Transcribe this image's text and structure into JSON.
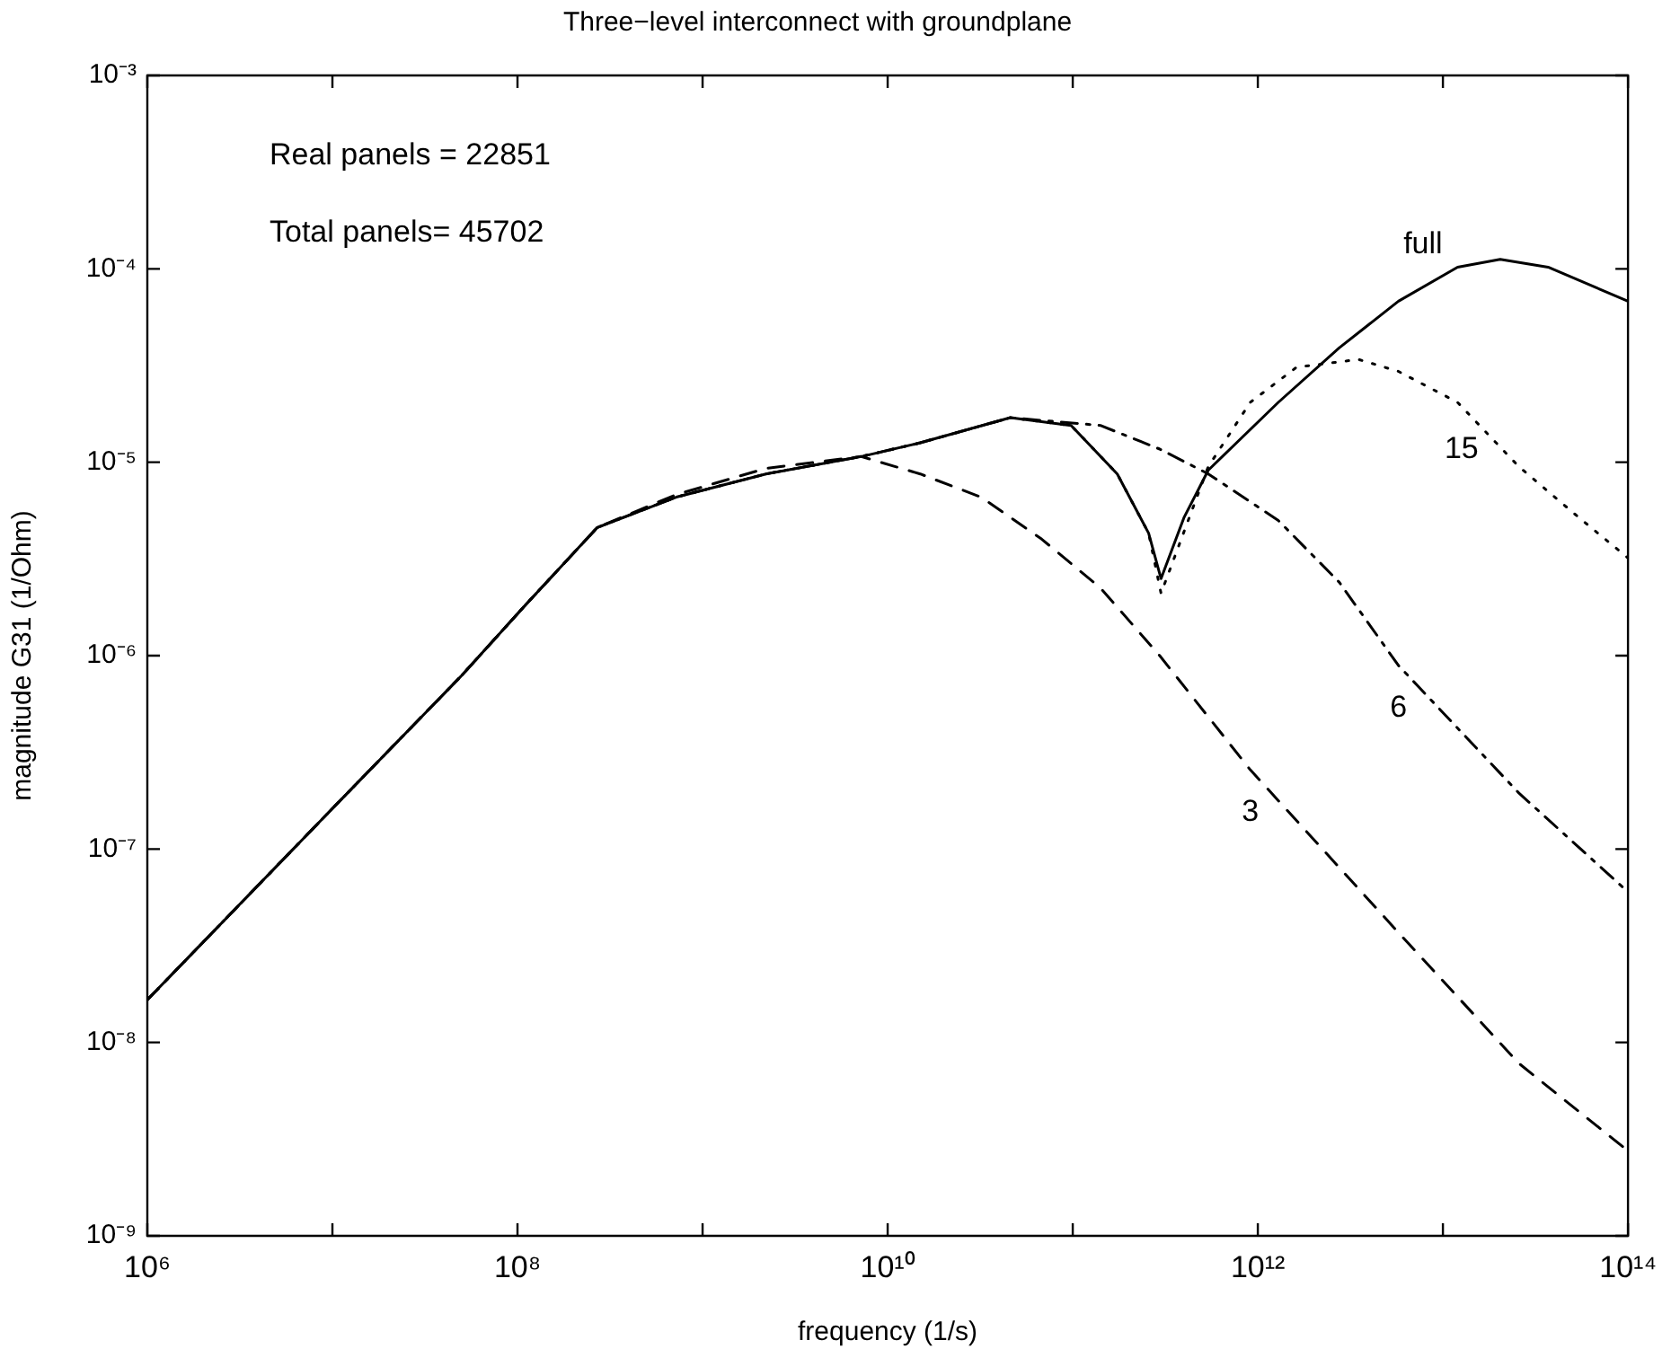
{
  "chart_data": {
    "type": "line",
    "title": "Three−level interconnect with groundplane",
    "xlabel": "frequency (1/s)",
    "ylabel": "magnitude G31 (1/Ohm)",
    "log": "xy",
    "grid": false,
    "legend": false,
    "marker": "none",
    "xlim": [
      1000000.0,
      100000000000000.0
    ],
    "ylim": [
      1e-09,
      0.001
    ],
    "xticks": [
      {
        "value": 1000000.0,
        "label": "10⁶"
      },
      {
        "value": 10000000.0,
        "label": null
      },
      {
        "value": 100000000.0,
        "label": "10⁸"
      },
      {
        "value": 1000000000.0,
        "label": null
      },
      {
        "value": 10000000000.0,
        "label": "10¹⁰"
      },
      {
        "value": 100000000000.0,
        "label": null
      },
      {
        "value": 1000000000000.0,
        "label": "10¹²"
      },
      {
        "value": 10000000000000.0,
        "label": null
      },
      {
        "value": 100000000000000.0,
        "label": "10¹⁴"
      }
    ],
    "yticks": [
      {
        "value": 1e-09,
        "label": "10⁻⁹"
      },
      {
        "value": 1e-08,
        "label": "10⁻⁸"
      },
      {
        "value": 1e-07,
        "label": "10⁻⁷"
      },
      {
        "value": 1e-06,
        "label": "10⁻⁶"
      },
      {
        "value": 1e-05,
        "label": "10⁻⁵"
      },
      {
        "value": 0.0001,
        "label": "10⁻⁴"
      },
      {
        "value": 0.001,
        "label": "10⁻³"
      }
    ],
    "series": [
      {
        "color": "#000000",
        "line_style": "solid",
        "x": [
          1000000.0,
          10000000.0,
          50000000.0,
          110000000.0,
          270000000.0,
          720000000.0,
          2200000000.0,
          7200000000.0,
          15000000000.0,
          46000000000.0,
          98000000000.0,
          174000000000.0,
          257000000000.0,
          300000000000.0,
          400000000000.0,
          540000000000.0,
          1290000000000.0,
          2750000000000.0,
          5750000000000.0,
          12000000000000.0,
          20400000000000.0,
          37000000000000.0,
          100000000000000.0
        ],
        "values": [
          1.66e-08,
          1.62e-07,
          7.9e-07,
          1.82e-06,
          4.6e-06,
          6.6e-06,
          8.7e-06,
          1.07e-05,
          1.26e-05,
          1.7e-05,
          1.55e-05,
          8.7e-06,
          4.3e-06,
          2.5e-06,
          5.2e-06,
          9.1e-06,
          2.04e-05,
          3.9e-05,
          6.8e-05,
          0.000102,
          0.000112,
          0.000102,
          6.8e-05
        ]
      },
      {
        "color": "#000000",
        "line_style": "dashed",
        "x": [
          1000000.0,
          10000000.0,
          50000000.0,
          110000000.0,
          270000000.0,
          720000000.0,
          2200000000.0,
          7200000000.0,
          15000000000.0,
          32000000000.0,
          68000000000.0,
          141000000000.0,
          295000000000.0,
          910000000000.0,
          5750000000000.0,
          25700000000000.0,
          100000000000000.0
        ],
        "values": [
          1.66e-08,
          1.62e-07,
          7.9e-07,
          1.82e-06,
          4.6e-06,
          6.8e-06,
          9.3e-06,
          1.07e-05,
          8.7e-06,
          6.6e-06,
          4e-06,
          2.24e-06,
          1e-06,
          2.57e-07,
          3.7e-08,
          7.8e-09,
          2.75e-09
        ]
      },
      {
        "color": "#000000",
        "line_style": "dashdot",
        "x": [
          1000000.0,
          10000000.0,
          50000000.0,
          110000000.0,
          270000000.0,
          720000000.0,
          2200000000.0,
          7200000000.0,
          15000000000.0,
          46000000000.0,
          141000000000.0,
          295000000000.0,
          540000000000.0,
          1290000000000.0,
          2750000000000.0,
          5750000000000.0,
          25700000000000.0,
          100000000000000.0
        ],
        "values": [
          1.66e-08,
          1.62e-07,
          7.9e-07,
          1.82e-06,
          4.6e-06,
          6.6e-06,
          8.7e-06,
          1.07e-05,
          1.26e-05,
          1.7e-05,
          1.55e-05,
          1.17e-05,
          8.7e-06,
          5e-06,
          2.4e-06,
          8.9e-07,
          1.95e-07,
          6e-08
        ]
      },
      {
        "color": "#000000",
        "line_style": "dotted",
        "x": [
          1000000.0,
          10000000.0,
          50000000.0,
          110000000.0,
          270000000.0,
          720000000.0,
          2200000000.0,
          7200000000.0,
          15000000000.0,
          46000000000.0,
          98000000000.0,
          174000000000.0,
          257000000000.0,
          300000000000.0,
          540000000000.0,
          910000000000.0,
          1620000000000.0,
          3500000000000.0,
          5750000000000.0,
          12000000000000.0,
          25700000000000.0,
          54000000000000.0,
          100000000000000.0
        ],
        "values": [
          1.66e-08,
          1.62e-07,
          7.9e-07,
          1.82e-06,
          4.6e-06,
          6.6e-06,
          8.7e-06,
          1.07e-05,
          1.26e-05,
          1.7e-05,
          1.55e-05,
          8.7e-06,
          4.3e-06,
          2.1e-06,
          9.5e-06,
          2.04e-05,
          3.1e-05,
          3.4e-05,
          2.95e-05,
          2.04e-05,
          9.5e-06,
          5.2e-06,
          3.2e-06
        ]
      }
    ],
    "annotations": [
      "Real panels = 22851",
      "Total panels= 45702",
      {
        "text": "full",
        "x": 7800000000000.0,
        "y": 8e-05
      },
      {
        "text": "15",
        "x": 12600000000000.0,
        "y": 1.95e-05
      },
      {
        "text": "6",
        "x": 5750000000000.0,
        "y": 8.9e-07
      },
      {
        "text": "3",
        "x": 910000000000.0,
        "y": 2.57e-07
      }
    ]
  }
}
